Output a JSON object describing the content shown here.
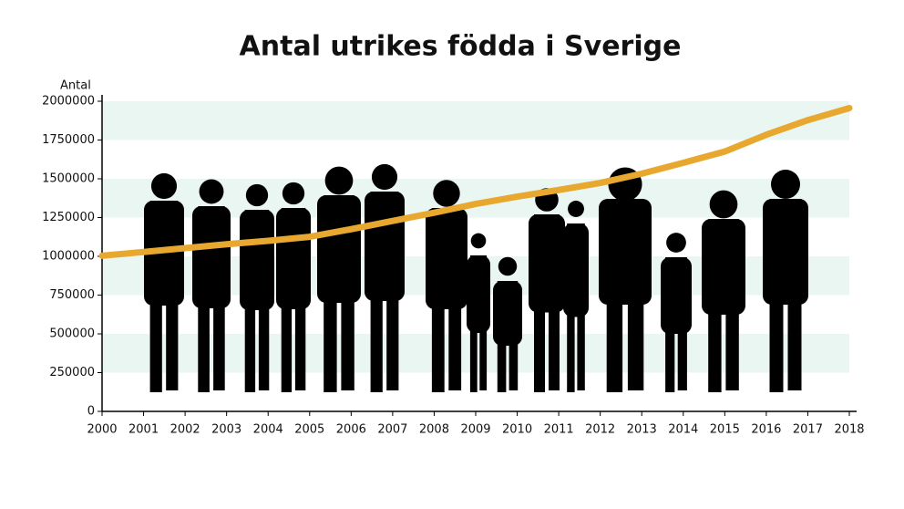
{
  "chart_data": {
    "type": "line",
    "title": "Antal utrikes födda i Sverige",
    "y_label": "Antal",
    "x": [
      2000,
      2001,
      2002,
      2003,
      2004,
      2005,
      2006,
      2007,
      2008,
      2009,
      2010,
      2011,
      2012,
      2013,
      2014,
      2015,
      2016,
      2017,
      2018
    ],
    "series": [
      {
        "name": "Antal utrikes födda",
        "color": "#e8a82f",
        "values": [
          1004000,
          1028000,
          1053000,
          1078000,
          1100000,
          1126000,
          1175000,
          1228000,
          1281000,
          1338000,
          1385000,
          1428000,
          1473000,
          1533000,
          1603000,
          1676000,
          1784000,
          1878000,
          1956000
        ]
      }
    ],
    "xlim": [
      2000,
      2018
    ],
    "xticks": [
      2000,
      2001,
      2002,
      2003,
      2004,
      2005,
      2006,
      2007,
      2008,
      2009,
      2010,
      2011,
      2012,
      2013,
      2014,
      2015,
      2016,
      2017,
      2018
    ],
    "ylim": [
      0,
      2000000
    ],
    "yticks": [
      0,
      250000,
      500000,
      750000,
      1000000,
      1250000,
      1500000,
      1750000,
      2000000
    ],
    "grid": "bands",
    "band_color": "#eaf6f1"
  }
}
